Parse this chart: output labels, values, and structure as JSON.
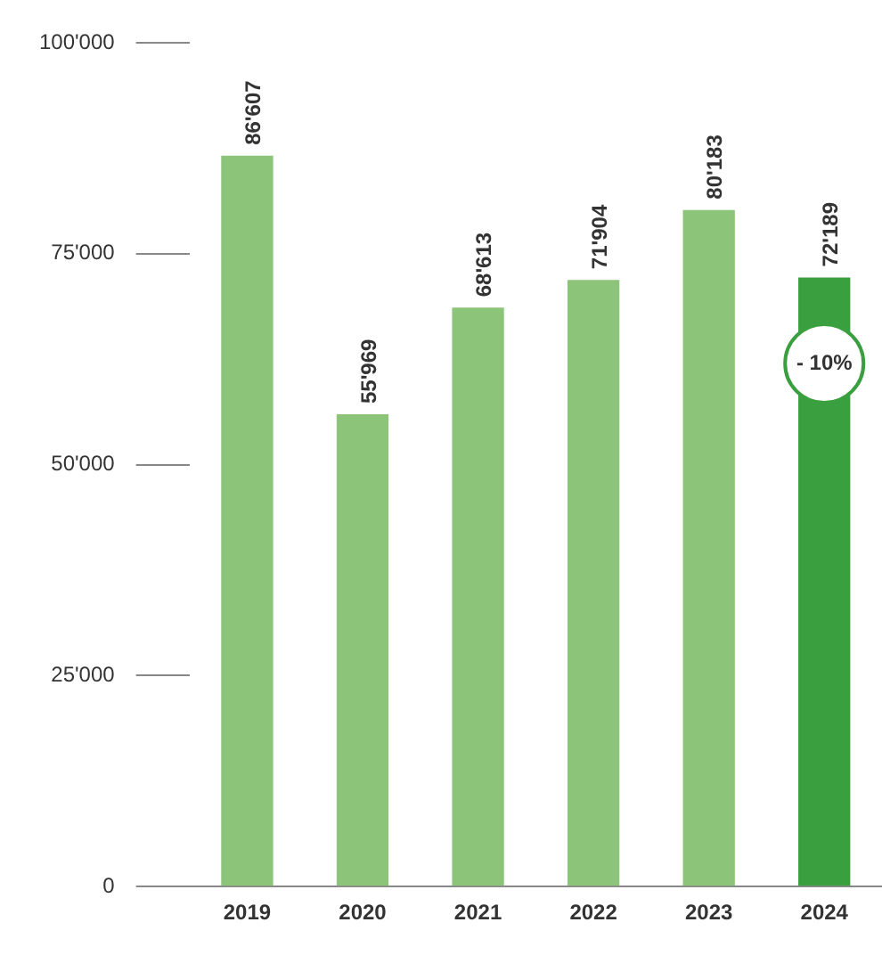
{
  "chart_data": {
    "type": "bar",
    "categories": [
      "2019",
      "2020",
      "2021",
      "2022",
      "2023",
      "2024"
    ],
    "values": [
      86607,
      55969,
      68613,
      71904,
      80183,
      72189
    ],
    "colors": [
      "#8cc47a",
      "#8cc47a",
      "#8cc47a",
      "#8cc47a",
      "#8cc47a",
      "#3a9f3e"
    ],
    "value_labels": [
      "86'607",
      "55'969",
      "68'613",
      "71'904",
      "80'183",
      "72'189"
    ],
    "ylim": [
      0,
      100000
    ],
    "yticks": [
      {
        "value": 0,
        "label": "0"
      },
      {
        "value": 25000,
        "label": "25'000"
      },
      {
        "value": 50000,
        "label": "50'000"
      },
      {
        "value": 75000,
        "label": "75'000"
      },
      {
        "value": 100000,
        "label": "100'000"
      }
    ],
    "annotations": [
      {
        "text": "- 10%",
        "x": "2024",
        "y": 62000
      }
    ],
    "grid": false,
    "legend": false
  }
}
